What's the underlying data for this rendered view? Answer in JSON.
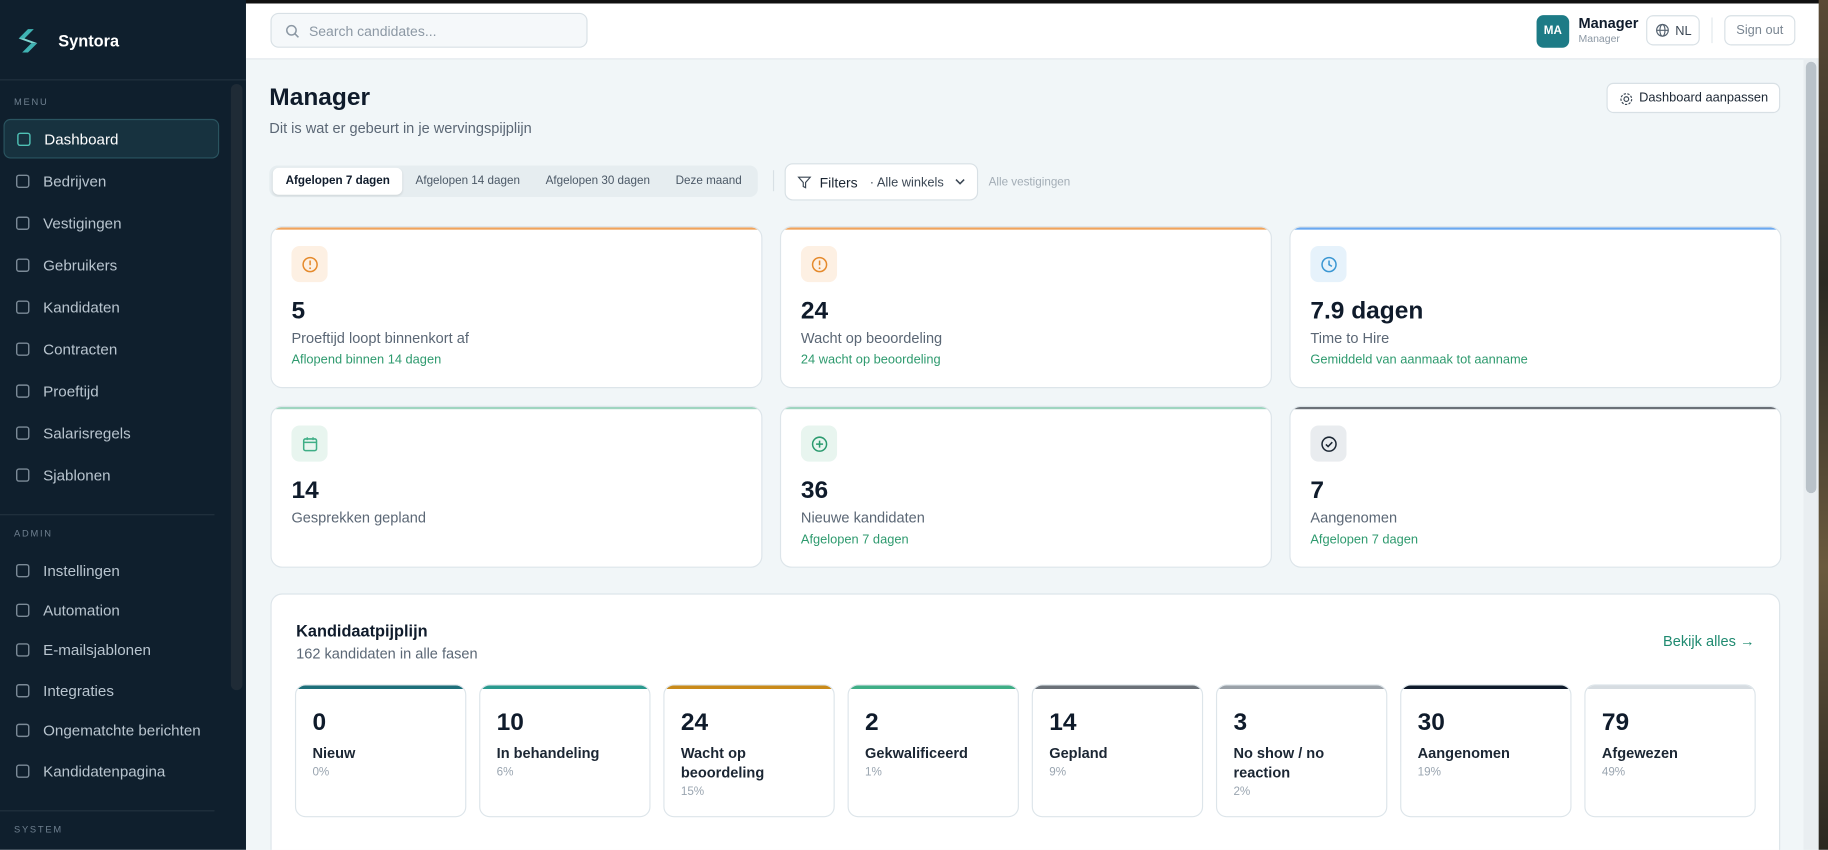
{
  "brand": "Syntora",
  "search_placeholder": "Search candidates...",
  "user": {
    "initials": "MA",
    "name": "Manager",
    "role": "Manager",
    "language": "NL",
    "sign_out": "Sign out"
  },
  "nav": [
    {
      "section": "MENU",
      "items": [
        "Dashboard",
        "Bedrijven",
        "Vestigingen",
        "Gebruikers",
        "Kandidaten",
        "Contracten",
        "Proeftijd",
        "Salarisregels",
        "Sjablonen"
      ]
    },
    {
      "section": "ADMIN",
      "items": [
        "Instellingen",
        "Automation",
        "E-mailsjablonen",
        "Integraties",
        "Ongematchte berichten",
        "Kandidatenpagina"
      ]
    },
    {
      "section": "SYSTEM",
      "items": []
    }
  ],
  "header": {
    "title": "Manager",
    "subtitle": "Dit is wat er gebeurt in je wervingspijplijn",
    "customize": "Dashboard aanpassen"
  },
  "periods": [
    "Afgelopen 7 dagen",
    "Afgelopen 14 dagen",
    "Afgelopen 30 dagen",
    "Deze maand"
  ],
  "filters": {
    "button": "Filters",
    "store": "· Alle winkels",
    "locations": "Alle vestigingen"
  },
  "stats": [
    {
      "value": 5,
      "label": "Proeftijd loopt binnenkort af",
      "note": "Aflopend binnen 14 dagen"
    },
    {
      "value": 24,
      "label": "Wacht op beoordeling",
      "note": "24 wacht op beoordeling"
    },
    {
      "value": "7.9 dagen",
      "label": "Time to Hire",
      "note": "Gemiddeld van aanmaak tot aanname"
    },
    {
      "value": 14,
      "label": "Gesprekken gepland"
    },
    {
      "value": 36,
      "label": "Nieuwe kandidaten",
      "note": "Afgelopen 7 dagen"
    },
    {
      "value": 7,
      "label": "Aangenomen",
      "note": "Afgelopen 7 dagen"
    }
  ],
  "pipeline": {
    "title": "Kandidaatpijplijn",
    "subtitle": "162 kandidaten in alle fasen",
    "link": "Bekijk alles →",
    "stages": [
      {
        "count": 0,
        "name": "Nieuw",
        "percent": "0%"
      },
      {
        "count": 10,
        "name": "In behandeling",
        "percent": "6%"
      },
      {
        "count": 24,
        "name": "Wacht op beoordeling",
        "percent": "15%"
      },
      {
        "count": 2,
        "name": "Gekwalificeerd",
        "percent": "1%"
      },
      {
        "count": 14,
        "name": "Gepland",
        "percent": "9%"
      },
      {
        "count": 3,
        "name": "No show / no reaction",
        "percent": "2%"
      },
      {
        "count": 30,
        "name": "Aangenomen",
        "percent": "19%"
      },
      {
        "count": 79,
        "name": "Afgewezen",
        "percent": "49%"
      }
    ]
  }
}
